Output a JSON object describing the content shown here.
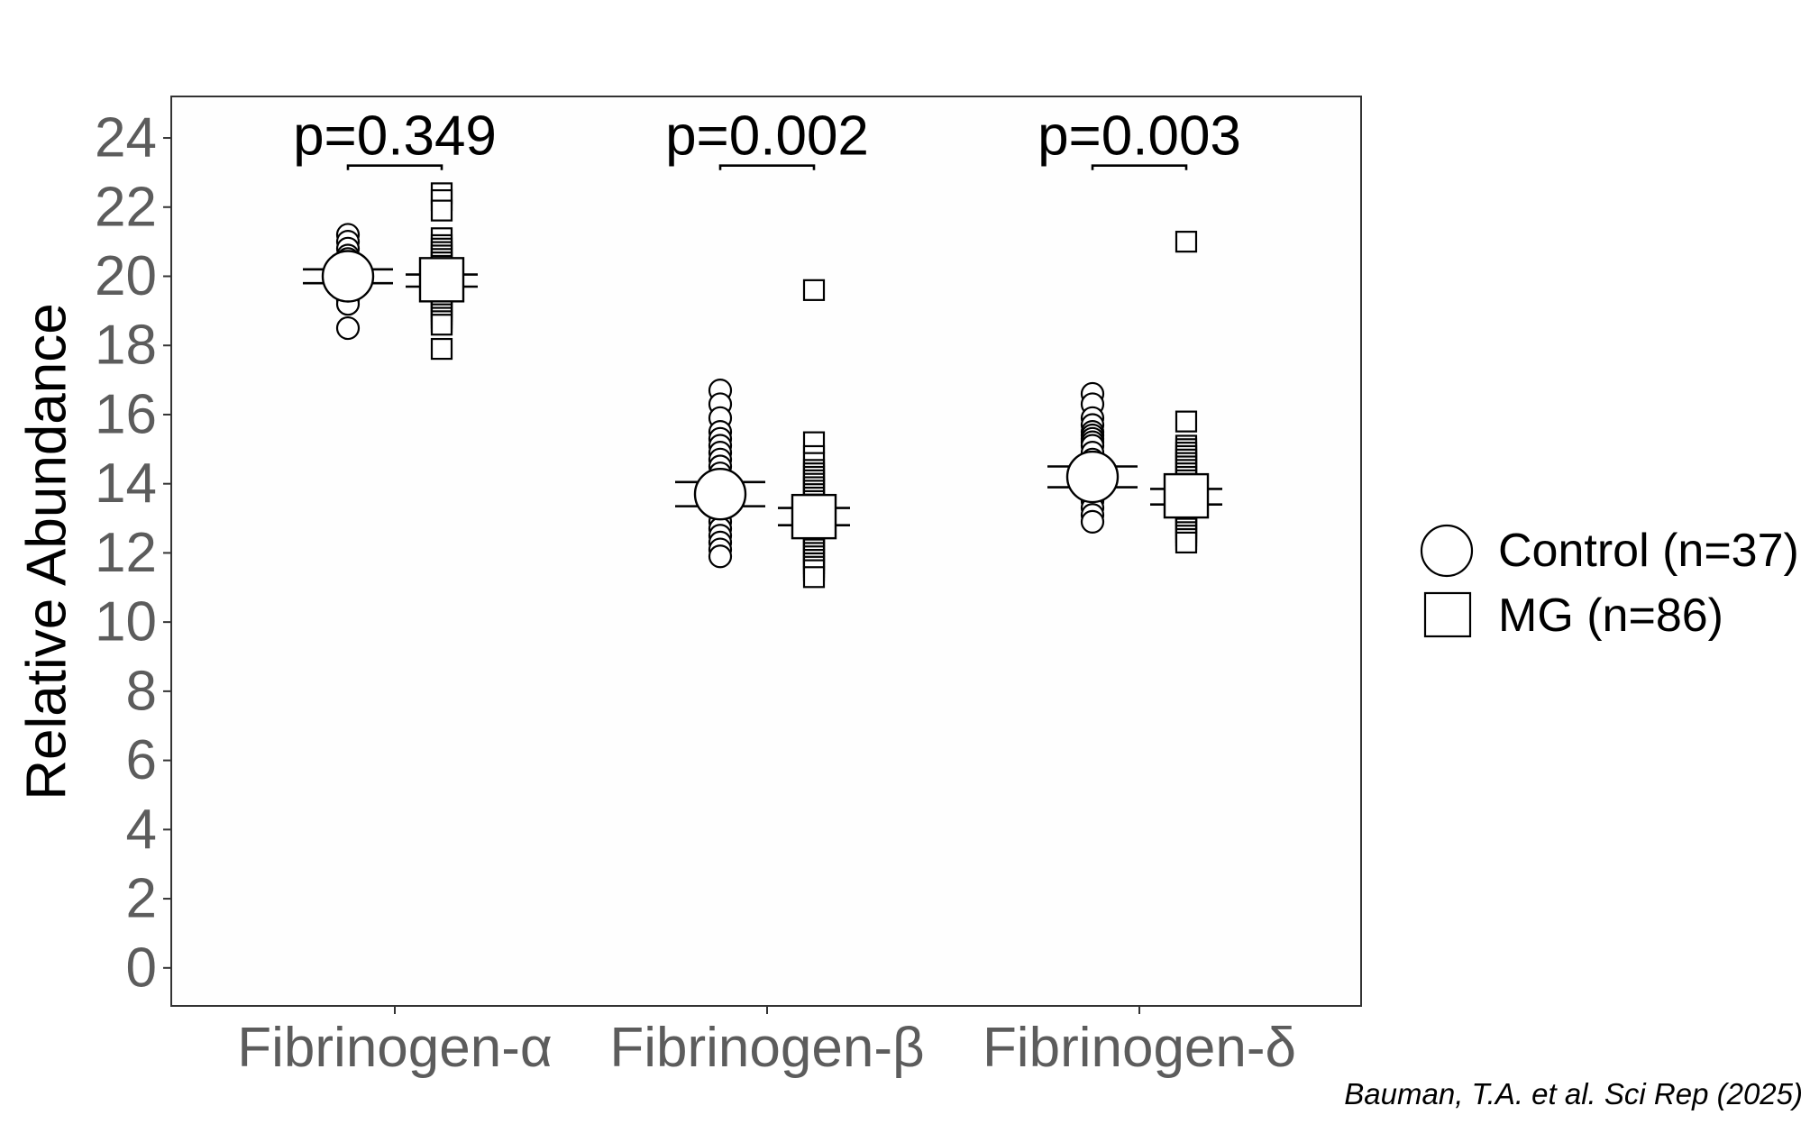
{
  "chart_data": {
    "type": "scatter",
    "title": "",
    "ylabel": "Relative Abundance",
    "xlabel": "",
    "ylim": [
      -1.1,
      25.2
    ],
    "yticks": [
      0,
      2,
      4,
      6,
      8,
      10,
      12,
      14,
      16,
      18,
      20,
      22,
      24
    ],
    "ytick_labels": [
      "0",
      "2",
      "4",
      "6",
      "8",
      "10",
      "12",
      "14",
      "16",
      "18",
      "20",
      "22",
      "24"
    ],
    "categories": [
      "Fibrinogen-α",
      "Fibrinogen-β",
      "Fibrinogen-δ"
    ],
    "grid": false,
    "legend_position": "right",
    "series": [
      {
        "name": "Control (n=37)",
        "marker": "circle",
        "means": [
          20.0,
          13.7,
          14.2
        ],
        "ci": [
          [
            19.8,
            20.2
          ],
          [
            13.35,
            14.05
          ],
          [
            13.9,
            14.5
          ]
        ],
        "points": [
          [
            21.2,
            21.0,
            20.8,
            20.6,
            20.5,
            20.4,
            20.3,
            20.2,
            20.1,
            20.0,
            20.0,
            19.9,
            19.8,
            19.7,
            19.6,
            19.5,
            19.4,
            19.3,
            19.2,
            18.5
          ],
          [
            16.7,
            16.3,
            15.9,
            15.5,
            15.3,
            15.1,
            14.9,
            14.7,
            14.5,
            14.3,
            14.1,
            13.9,
            13.7,
            13.5,
            13.3,
            13.1,
            12.9,
            12.7,
            12.5,
            12.3,
            12.1,
            11.9
          ],
          [
            16.6,
            16.3,
            15.9,
            15.7,
            15.5,
            15.4,
            15.3,
            15.2,
            15.1,
            14.9,
            14.7,
            14.5,
            14.3,
            14.1,
            13.9,
            13.7,
            13.5,
            13.3,
            13.1,
            12.9
          ]
        ]
      },
      {
        "name": "MG (n=86)",
        "marker": "square",
        "means": [
          19.9,
          13.05,
          13.65
        ],
        "ci": [
          [
            19.7,
            20.05
          ],
          [
            12.8,
            13.3
          ],
          [
            13.4,
            13.85
          ]
        ],
        "points": [
          [
            22.4,
            22.2,
            21.9,
            21.1,
            20.9,
            20.8,
            20.7,
            20.6,
            20.5,
            20.4,
            20.3,
            20.2,
            20.1,
            20.0,
            19.9,
            19.8,
            19.7,
            19.6,
            19.5,
            19.4,
            19.3,
            19.2,
            19.1,
            19.0,
            18.9,
            18.8,
            18.7,
            18.6,
            17.9
          ],
          [
            19.6,
            15.2,
            14.8,
            14.6,
            14.4,
            14.3,
            14.2,
            14.1,
            14.0,
            13.9,
            13.8,
            13.7,
            13.6,
            13.5,
            13.4,
            13.3,
            13.2,
            13.1,
            13.0,
            12.9,
            12.8,
            12.7,
            12.6,
            12.5,
            12.4,
            12.3,
            12.2,
            12.1,
            12.0,
            11.9,
            11.8,
            11.7,
            11.6,
            11.5,
            11.3
          ],
          [
            21.0,
            15.8,
            15.1,
            15.0,
            14.9,
            14.8,
            14.7,
            14.6,
            14.5,
            14.4,
            14.3,
            14.2,
            14.1,
            14.0,
            13.9,
            13.8,
            13.7,
            13.6,
            13.5,
            13.4,
            13.3,
            13.2,
            13.1,
            13.0,
            12.9,
            12.8,
            12.7,
            12.6,
            12.5,
            12.4,
            12.3
          ]
        ]
      }
    ],
    "annotations": [
      "p=0.349",
      "p=0.002",
      "p=0.003"
    ],
    "citation": "Bauman, T.A. et al. Sci Rep (2025)"
  },
  "legend": {
    "control_label": "Control (n=37)",
    "mg_label": "MG (n=86)"
  }
}
